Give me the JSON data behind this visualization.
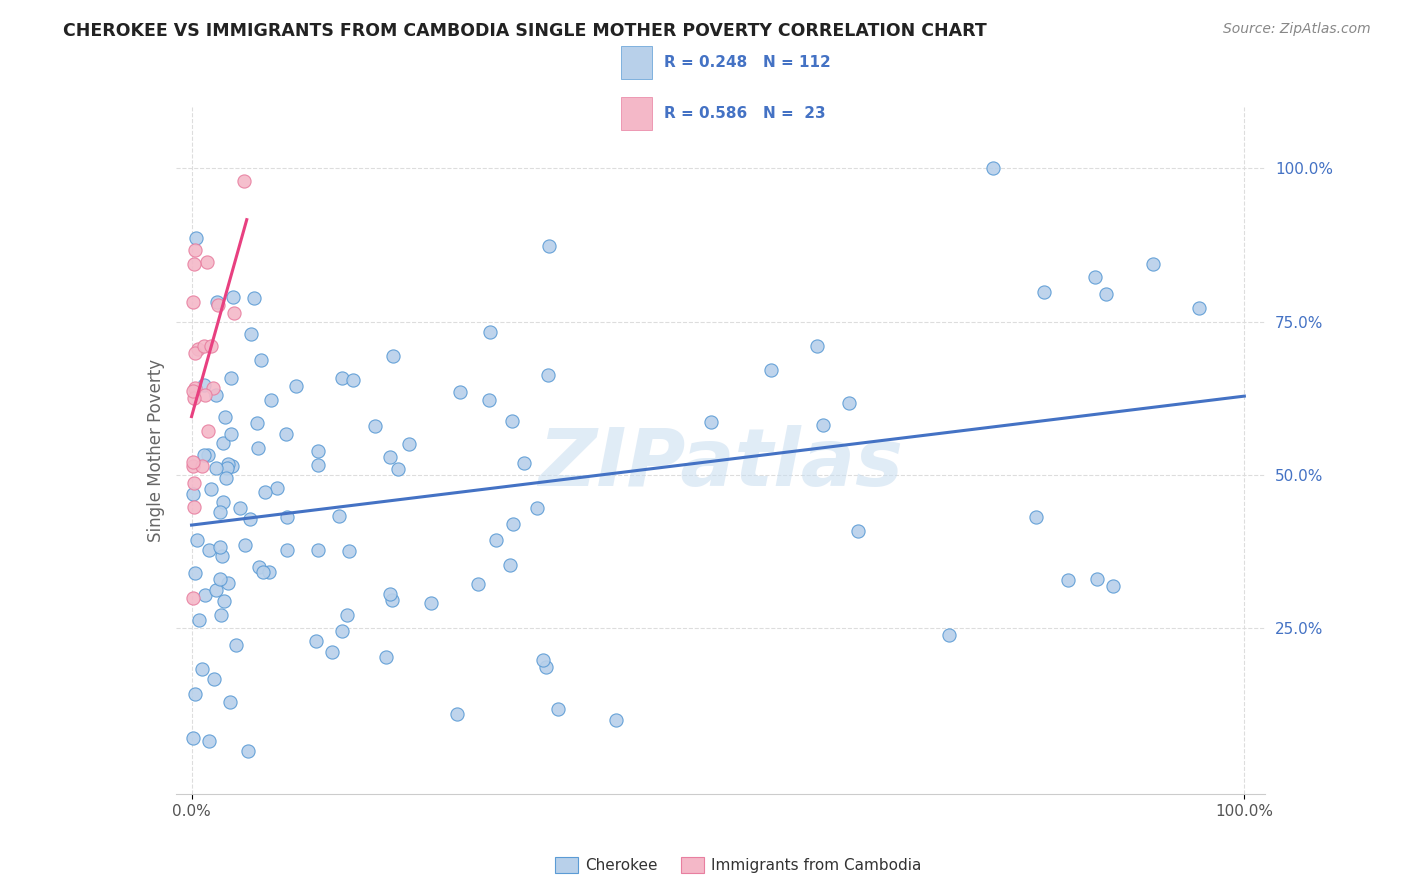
{
  "title": "CHEROKEE VS IMMIGRANTS FROM CAMBODIA SINGLE MOTHER POVERTY CORRELATION CHART",
  "source": "Source: ZipAtlas.com",
  "ylabel": "Single Mother Poverty",
  "ytick_labels": [
    "25.0%",
    "50.0%",
    "75.0%",
    "100.0%"
  ],
  "ytick_positions": [
    0.25,
    0.5,
    0.75,
    1.0
  ],
  "xtick_labels": [
    "0.0%",
    "100.0%"
  ],
  "xtick_positions": [
    0.0,
    1.0
  ],
  "cherokee_R": 0.248,
  "cherokee_N": 112,
  "cambodia_R": 0.586,
  "cambodia_N": 23,
  "cherokee_color": "#b8d0ea",
  "cherokee_edge_color": "#5b9bd5",
  "cherokee_line_color": "#4472c4",
  "cambodia_color": "#f4b8c8",
  "cambodia_edge_color": "#e87fa0",
  "cambodia_line_color": "#e84080",
  "yaxis_label_color": "#4472c4",
  "watermark": "ZIPatlas",
  "legend_cherokee_text": "R = 0.248   N = 112",
  "legend_cambodia_text": "R = 0.586   N =  23",
  "bottom_legend_cherokee": "Cherokee",
  "bottom_legend_cambodia": "Immigrants from Cambodia"
}
